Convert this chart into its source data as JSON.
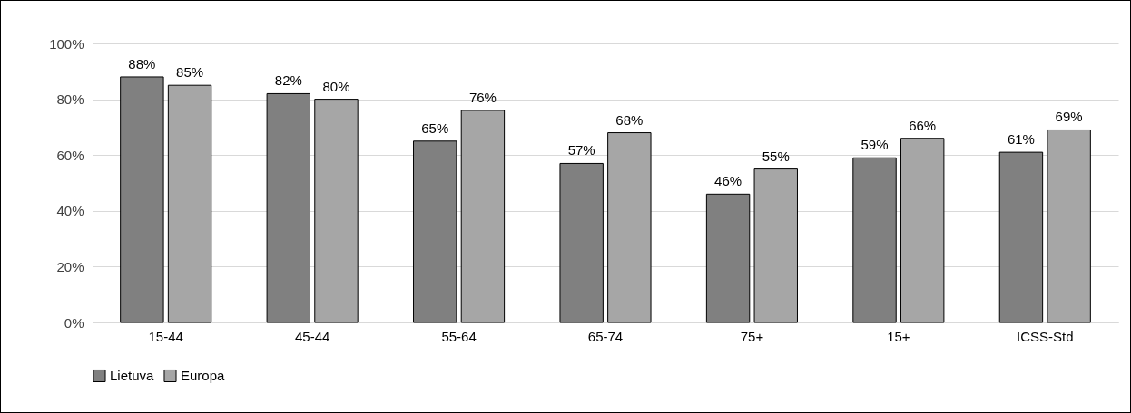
{
  "chart_data": {
    "type": "bar",
    "categories": [
      "15-44",
      "45-44",
      "55-64",
      "65-74",
      "75+",
      "15+",
      "ICSS-Std"
    ],
    "series": [
      {
        "name": "Lietuva",
        "color": "#808080",
        "values": [
          88,
          82,
          65,
          57,
          46,
          59,
          61
        ],
        "value_labels": [
          "88%",
          "82%",
          "65%",
          "57%",
          "46%",
          "59%",
          "61%"
        ]
      },
      {
        "name": "Europa",
        "color": "#a6a6a6",
        "values": [
          85,
          80,
          76,
          68,
          55,
          66,
          69
        ],
        "value_labels": [
          "85%",
          "80%",
          "76%",
          "68%",
          "55%",
          "66%",
          "69%"
        ]
      }
    ],
    "ylim": [
      0,
      100
    ],
    "yticks": [
      {
        "value": 0,
        "label": "0%"
      },
      {
        "value": 20,
        "label": "20%"
      },
      {
        "value": 40,
        "label": "40%"
      },
      {
        "value": 60,
        "label": "60%"
      },
      {
        "value": 80,
        "label": "80%"
      },
      {
        "value": 100,
        "label": "100%"
      }
    ],
    "grid": "y",
    "legend": "bottom"
  }
}
